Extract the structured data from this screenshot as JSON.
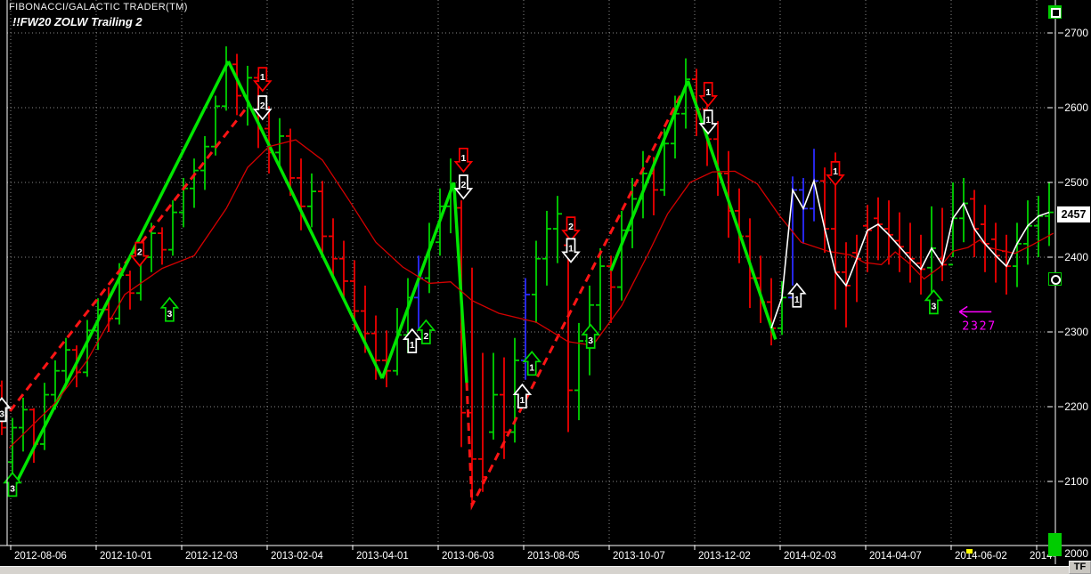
{
  "window": {
    "title": "FIBONACCI/GALACTIC TRADER(TM)",
    "chart_label": "!!FW20 ZOLW Trailing 2"
  },
  "toolbar": {
    "tf_button_label": "TF"
  },
  "y_axis": {
    "labels": [
      "2700",
      "2600",
      "2500",
      "2400",
      "2300",
      "2200",
      "2100"
    ],
    "bottom_label": "2000",
    "last_price_badge": "2457"
  },
  "x_axis": {
    "labels": [
      "2012-08-06",
      "2012-10-01",
      "2012-12-03",
      "2013-02-04",
      "2013-04-01",
      "2013-06-03",
      "2013-08-05",
      "2013-10-07",
      "2013-12-02",
      "2014-02-03",
      "2014-04-07",
      "2014-06-02",
      "2014-"
    ]
  },
  "colors": {
    "up_bar": "#00d200",
    "down_bar": "#ef0000",
    "breakout_bar": "#2a2aff",
    "zigzag": "#00e600",
    "trailing": "#ff1414",
    "moving_average": "#d40000",
    "close_line": "#ffffff",
    "annotation": "#ff00ff",
    "grid": "#8a8a8a"
  },
  "chart_data": {
    "type": "ohlc-bar",
    "title": "!!FW20 ZOLW Trailing 2",
    "timeframe": "weekly",
    "x_tick_dates": [
      "2012-08-06",
      "2012-10-01",
      "2012-12-03",
      "2013-02-04",
      "2013-04-01",
      "2013-06-03",
      "2013-08-05",
      "2013-10-07",
      "2013-12-02",
      "2014-02-03",
      "2014-04-07",
      "2014-06-02",
      "2014-"
    ],
    "bars_per_x_tick": 8,
    "first_bar_index": -1,
    "ylim_visible": [
      2015,
      2745
    ],
    "y_tick_values": [
      2700,
      2600,
      2500,
      2400,
      2300,
      2200,
      2100,
      2000
    ],
    "last_price": 2457,
    "bars": [
      [
        2235,
        2162,
        2228,
        2172,
        "r"
      ],
      [
        2185,
        2108,
        2126,
        2172,
        "g"
      ],
      [
        2212,
        2140,
        2172,
        2196,
        "g"
      ],
      [
        2198,
        2125,
        2196,
        2150,
        "r"
      ],
      [
        2232,
        2142,
        2150,
        2216,
        "g"
      ],
      [
        2262,
        2196,
        2216,
        2248,
        "g"
      ],
      [
        2292,
        2230,
        2248,
        2276,
        "g"
      ],
      [
        2282,
        2226,
        2276,
        2246,
        "r"
      ],
      [
        2316,
        2240,
        2246,
        2302,
        "g"
      ],
      [
        2345,
        2276,
        2302,
        2330,
        "g"
      ],
      [
        2360,
        2300,
        2330,
        2318,
        "r"
      ],
      [
        2392,
        2310,
        2318,
        2376,
        "g"
      ],
      [
        2382,
        2330,
        2376,
        2352,
        "r"
      ],
      [
        2415,
        2342,
        2352,
        2400,
        "g"
      ],
      [
        2446,
        2380,
        2400,
        2432,
        "g"
      ],
      [
        2440,
        2390,
        2432,
        2410,
        "r"
      ],
      [
        2476,
        2402,
        2410,
        2460,
        "g"
      ],
      [
        2506,
        2440,
        2460,
        2492,
        "g"
      ],
      [
        2532,
        2466,
        2492,
        2516,
        "g"
      ],
      [
        2562,
        2490,
        2516,
        2548,
        "g"
      ],
      [
        2616,
        2536,
        2548,
        2602,
        "g"
      ],
      [
        2682,
        2596,
        2602,
        2658,
        "g"
      ],
      [
        2672,
        2590,
        2658,
        2616,
        "r"
      ],
      [
        2656,
        2576,
        2616,
        2640,
        "g"
      ],
      [
        2646,
        2546,
        2640,
        2572,
        "r"
      ],
      [
        2602,
        2512,
        2572,
        2540,
        "r"
      ],
      [
        2586,
        2520,
        2540,
        2562,
        "g"
      ],
      [
        2572,
        2482,
        2562,
        2506,
        "r"
      ],
      [
        2532,
        2436,
        2506,
        2468,
        "r"
      ],
      [
        2512,
        2440,
        2468,
        2488,
        "g"
      ],
      [
        2502,
        2406,
        2488,
        2428,
        "r"
      ],
      [
        2452,
        2372,
        2428,
        2398,
        "r"
      ],
      [
        2422,
        2342,
        2398,
        2368,
        "r"
      ],
      [
        2396,
        2302,
        2368,
        2328,
        "r"
      ],
      [
        2362,
        2272,
        2328,
        2298,
        "r"
      ],
      [
        2322,
        2236,
        2298,
        2262,
        "r"
      ],
      [
        2302,
        2226,
        2262,
        2248,
        "r"
      ],
      [
        2332,
        2242,
        2248,
        2296,
        "g"
      ],
      [
        2372,
        2272,
        2296,
        2346,
        "g"
      ],
      [
        2402,
        2302,
        2346,
        2372,
        "b"
      ],
      [
        2446,
        2352,
        2372,
        2420,
        "g"
      ],
      [
        2492,
        2402,
        2420,
        2468,
        "g"
      ],
      [
        2532,
        2432,
        2468,
        2498,
        "g"
      ],
      [
        2476,
        2146,
        2466,
        2192,
        "r"
      ],
      [
        2386,
        2070,
        2192,
        2130,
        "r"
      ],
      [
        2272,
        2086,
        2130,
        2106,
        "r"
      ],
      [
        2272,
        2156,
        2166,
        2216,
        "g"
      ],
      [
        2266,
        2130,
        2216,
        2166,
        "r"
      ],
      [
        2292,
        2152,
        2166,
        2262,
        "g"
      ],
      [
        2372,
        2236,
        2262,
        2350,
        "b"
      ],
      [
        2422,
        2312,
        2350,
        2398,
        "g"
      ],
      [
        2462,
        2362,
        2398,
        2438,
        "g"
      ],
      [
        2482,
        2392,
        2438,
        2458,
        "g"
      ],
      [
        2426,
        2166,
        2416,
        2222,
        "r"
      ],
      [
        2312,
        2182,
        2222,
        2288,
        "g"
      ],
      [
        2362,
        2242,
        2288,
        2336,
        "g"
      ],
      [
        2412,
        2302,
        2336,
        2388,
        "g"
      ],
      [
        2402,
        2312,
        2388,
        2360,
        "r"
      ],
      [
        2462,
        2342,
        2360,
        2436,
        "g"
      ],
      [
        2506,
        2412,
        2436,
        2478,
        "g"
      ],
      [
        2542,
        2452,
        2478,
        2512,
        "g"
      ],
      [
        2534,
        2456,
        2512,
        2490,
        "r"
      ],
      [
        2572,
        2482,
        2490,
        2552,
        "g"
      ],
      [
        2616,
        2532,
        2552,
        2592,
        "g"
      ],
      [
        2666,
        2572,
        2592,
        2638,
        "g"
      ],
      [
        2652,
        2562,
        2638,
        2598,
        "r"
      ],
      [
        2622,
        2522,
        2598,
        2558,
        "r"
      ],
      [
        2582,
        2482,
        2558,
        2512,
        "r"
      ],
      [
        2542,
        2426,
        2512,
        2462,
        "r"
      ],
      [
        2492,
        2392,
        2462,
        2428,
        "r"
      ],
      [
        2452,
        2332,
        2428,
        2372,
        "r"
      ],
      [
        2402,
        2312,
        2372,
        2340,
        "r"
      ],
      [
        2372,
        2282,
        2340,
        2305,
        "r"
      ],
      [
        2368,
        2296,
        2305,
        2346,
        "g"
      ],
      [
        2508,
        2362,
        2346,
        2490,
        "b"
      ],
      [
        2506,
        2418,
        2490,
        2465,
        "b"
      ],
      [
        2545,
        2448,
        2465,
        2502,
        "b"
      ],
      [
        2520,
        2406,
        2502,
        2438,
        "r"
      ],
      [
        2540,
        2330,
        2438,
        2380,
        "r"
      ],
      [
        2420,
        2306,
        2380,
        2362,
        "r"
      ],
      [
        2430,
        2340,
        2406,
        2398,
        "r"
      ],
      [
        2470,
        2380,
        2442,
        2436,
        "r"
      ],
      [
        2480,
        2396,
        2452,
        2444,
        "r"
      ],
      [
        2476,
        2390,
        2438,
        2430,
        "r"
      ],
      [
        2460,
        2380,
        2422,
        2414,
        "r"
      ],
      [
        2446,
        2366,
        2406,
        2398,
        "r"
      ],
      [
        2430,
        2350,
        2392,
        2384,
        "r"
      ],
      [
        2468,
        2342,
        2386,
        2412,
        "g"
      ],
      [
        2466,
        2368,
        2398,
        2390,
        "r"
      ],
      [
        2500,
        2400,
        2390,
        2452,
        "g"
      ],
      [
        2506,
        2420,
        2452,
        2472,
        "g"
      ],
      [
        2490,
        2400,
        2478,
        2438,
        "r"
      ],
      [
        2470,
        2380,
        2444,
        2418,
        "r"
      ],
      [
        2446,
        2366,
        2424,
        2402,
        "r"
      ],
      [
        2430,
        2350,
        2408,
        2388,
        "r"
      ],
      [
        2446,
        2360,
        2388,
        2418,
        "g"
      ],
      [
        2476,
        2390,
        2418,
        2442,
        "g"
      ],
      [
        2482,
        2400,
        2442,
        2455,
        "g"
      ],
      [
        2500,
        2415,
        2455,
        2460,
        "g"
      ]
    ],
    "overlays": {
      "zigzag_green_segments": [
        [
          [
            0,
            2088
          ],
          [
            20.2,
            2662
          ]
        ],
        [
          [
            20.2,
            2662
          ],
          [
            34.6,
            2238
          ]
        ],
        [
          [
            34.6,
            2238
          ],
          [
            41.3,
            2500
          ]
        ],
        [
          [
            41.3,
            2500
          ],
          [
            42.5,
            2232
          ]
        ],
        [
          [
            56,
            2382
          ],
          [
            63.2,
            2636
          ]
        ],
        [
          [
            63.2,
            2636
          ],
          [
            71.4,
            2290
          ]
        ]
      ],
      "trailing_red_dashed_segments": [
        [
          [
            -1,
            2180
          ],
          [
            21.8,
            2598
          ]
        ],
        [
          [
            42.5,
            2232
          ],
          [
            43,
            2068
          ],
          [
            62.7,
            2622
          ]
        ]
      ],
      "close_line_white": {
        "from_bar": 71,
        "to_bar": 97
      },
      "moving_average_red": [
        [
          -0.3,
          2145
        ],
        [
          4,
          2205
        ],
        [
          7,
          2262
        ],
        [
          10.5,
          2350
        ],
        [
          14,
          2385
        ],
        [
          17,
          2402
        ],
        [
          20,
          2465
        ],
        [
          22,
          2520
        ],
        [
          24,
          2548
        ],
        [
          26.5,
          2557
        ],
        [
          29,
          2530
        ],
        [
          31.5,
          2476
        ],
        [
          34,
          2420
        ],
        [
          36.5,
          2387
        ],
        [
          39,
          2365
        ],
        [
          41,
          2367
        ],
        [
          43,
          2342
        ],
        [
          45.5,
          2325
        ],
        [
          49,
          2313
        ],
        [
          52,
          2287
        ],
        [
          54.3,
          2282
        ],
        [
          57,
          2335
        ],
        [
          59.5,
          2405
        ],
        [
          61.3,
          2458
        ],
        [
          63.4,
          2500
        ],
        [
          65.5,
          2514
        ],
        [
          67.6,
          2515
        ],
        [
          69.7,
          2498
        ],
        [
          71.8,
          2455
        ],
        [
          73.8,
          2420
        ],
        [
          76.3,
          2408
        ],
        [
          78.4,
          2403
        ],
        [
          79.7,
          2393
        ],
        [
          81.3,
          2390
        ],
        [
          82.6,
          2407
        ],
        [
          83.8,
          2393
        ],
        [
          85.3,
          2371
        ],
        [
          86.8,
          2387
        ],
        [
          88,
          2408
        ],
        [
          89.4,
          2413
        ],
        [
          90.5,
          2423
        ],
        [
          91.3,
          2413
        ],
        [
          93.8,
          2405
        ],
        [
          95.5,
          2417
        ],
        [
          97.4,
          2432
        ]
      ]
    },
    "signals": [
      {
        "bar": -1,
        "price": 2196,
        "dir": "up",
        "color": "white",
        "label": "3"
      },
      {
        "bar": 0,
        "price": 2096,
        "dir": "up",
        "color": "green",
        "label": "3"
      },
      {
        "bar": 11.9,
        "price": 2404,
        "dir": "down",
        "color": "red",
        "label": "2"
      },
      {
        "bar": 14.7,
        "price": 2330,
        "dir": "up",
        "color": "green",
        "label": "3"
      },
      {
        "bar": 23.4,
        "price": 2638,
        "dir": "down",
        "color": "red",
        "label": "1"
      },
      {
        "bar": 23.4,
        "price": 2600,
        "dir": "down",
        "color": "white",
        "label": "2"
      },
      {
        "bar": 37.4,
        "price": 2288,
        "dir": "up",
        "color": "white",
        "label": "1"
      },
      {
        "bar": 38.7,
        "price": 2300,
        "dir": "up",
        "color": "green",
        "label": "2"
      },
      {
        "bar": 42.2,
        "price": 2530,
        "dir": "down",
        "color": "red",
        "label": "1"
      },
      {
        "bar": 42.2,
        "price": 2494,
        "dir": "down",
        "color": "white",
        "label": "2"
      },
      {
        "bar": 47.7,
        "price": 2214,
        "dir": "up",
        "color": "white",
        "label": "1"
      },
      {
        "bar": 48.6,
        "price": 2258,
        "dir": "up",
        "color": "green",
        "label": "1"
      },
      {
        "bar": 52.25,
        "price": 2438,
        "dir": "down",
        "color": "red",
        "label": "2"
      },
      {
        "bar": 52.25,
        "price": 2409,
        "dir": "down",
        "color": "white",
        "label": "1"
      },
      {
        "bar": 54.1,
        "price": 2294,
        "dir": "up",
        "color": "green",
        "label": "3"
      },
      {
        "bar": 65.1,
        "price": 2618,
        "dir": "down",
        "color": "red",
        "label": "1"
      },
      {
        "bar": 65.1,
        "price": 2581,
        "dir": "down",
        "color": "white",
        "label": "1"
      },
      {
        "bar": 73.4,
        "price": 2349,
        "dir": "up",
        "color": "white",
        "label": "1"
      },
      {
        "bar": 77,
        "price": 2512,
        "dir": "down",
        "color": "red",
        "label": "1"
      },
      {
        "bar": 86.2,
        "price": 2340,
        "dir": "up",
        "color": "green",
        "label": "3"
      }
    ],
    "price_annotation": {
      "text": "2327",
      "price": 2327,
      "bar_from": 88.6,
      "bar_to": 91.6
    }
  }
}
